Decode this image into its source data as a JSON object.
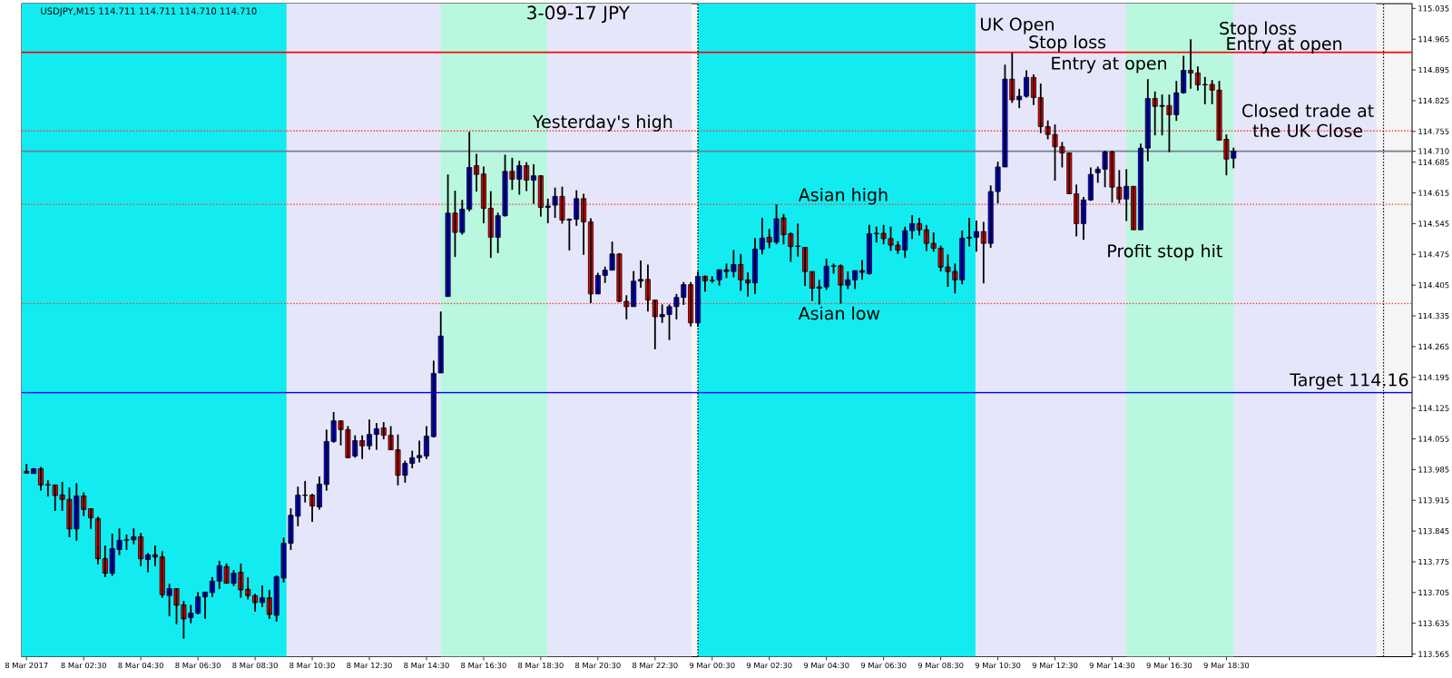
{
  "chart_data": {
    "type": "candlestick",
    "title": "3-09-17  JPY",
    "x": [
      "2017-03-08T00:30",
      "2017-03-08T00:45",
      "2017-03-08T01:00",
      "2017-03-08T01:15",
      "2017-03-08T01:30",
      "2017-03-08T01:45",
      "2017-03-08T02:00",
      "2017-03-08T02:15",
      "2017-03-08T02:30",
      "2017-03-08T02:45",
      "2017-03-08T03:00",
      "2017-03-08T03:15",
      "2017-03-08T03:30",
      "2017-03-08T03:45",
      "2017-03-08T04:00",
      "2017-03-08T04:15",
      "2017-03-08T04:30",
      "2017-03-08T04:45",
      "2017-03-08T05:00",
      "2017-03-08T05:15",
      "2017-03-08T05:30",
      "2017-03-08T05:45",
      "2017-03-08T06:00",
      "2017-03-08T06:15",
      "2017-03-08T06:30",
      "2017-03-08T06:45",
      "2017-03-08T07:00",
      "2017-03-08T07:15",
      "2017-03-08T07:30",
      "2017-03-08T07:45",
      "2017-03-08T08:00",
      "2017-03-08T08:15",
      "2017-03-08T08:30",
      "2017-03-08T08:45",
      "2017-03-08T09:00",
      "2017-03-08T09:15",
      "2017-03-08T09:30",
      "2017-03-08T09:45",
      "2017-03-08T10:00",
      "2017-03-08T10:15",
      "2017-03-08T10:30",
      "2017-03-08T10:45",
      "2017-03-08T11:00",
      "2017-03-08T11:15",
      "2017-03-08T11:30",
      "2017-03-08T11:45",
      "2017-03-08T12:00",
      "2017-03-08T12:15",
      "2017-03-08T12:30",
      "2017-03-08T12:45",
      "2017-03-08T13:00",
      "2017-03-08T13:15",
      "2017-03-08T13:30",
      "2017-03-08T13:45",
      "2017-03-08T14:00",
      "2017-03-08T14:15",
      "2017-03-08T14:30",
      "2017-03-08T14:45",
      "2017-03-08T15:00",
      "2017-03-08T15:15",
      "2017-03-08T15:30",
      "2017-03-08T15:45",
      "2017-03-08T16:00",
      "2017-03-08T16:15",
      "2017-03-08T16:30",
      "2017-03-08T16:45",
      "2017-03-08T17:00",
      "2017-03-08T17:15",
      "2017-03-08T17:30",
      "2017-03-08T17:45",
      "2017-03-08T18:00",
      "2017-03-08T18:15",
      "2017-03-08T18:30",
      "2017-03-08T18:45",
      "2017-03-08T19:00",
      "2017-03-08T19:15",
      "2017-03-08T19:30",
      "2017-03-08T19:45",
      "2017-03-08T20:00",
      "2017-03-08T20:15",
      "2017-03-08T20:30",
      "2017-03-08T20:45",
      "2017-03-08T21:00",
      "2017-03-08T21:15",
      "2017-03-08T21:30",
      "2017-03-08T21:45",
      "2017-03-08T22:00",
      "2017-03-08T22:15",
      "2017-03-08T22:30",
      "2017-03-08T22:45",
      "2017-03-08T23:00",
      "2017-03-08T23:15",
      "2017-03-08T23:30",
      "2017-03-08T23:45",
      "2017-03-09T00:00",
      "2017-03-09T00:15",
      "2017-03-09T00:30",
      "2017-03-09T00:45",
      "2017-03-09T01:00",
      "2017-03-09T01:15",
      "2017-03-09T01:30",
      "2017-03-09T01:45",
      "2017-03-09T02:00",
      "2017-03-09T02:15",
      "2017-03-09T02:30",
      "2017-03-09T02:45",
      "2017-03-09T03:00",
      "2017-03-09T03:15",
      "2017-03-09T03:30",
      "2017-03-09T03:45",
      "2017-03-09T04:00",
      "2017-03-09T04:15",
      "2017-03-09T04:30",
      "2017-03-09T04:45",
      "2017-03-09T05:00",
      "2017-03-09T05:15",
      "2017-03-09T05:30",
      "2017-03-09T05:45",
      "2017-03-09T06:00",
      "2017-03-09T06:15",
      "2017-03-09T06:30",
      "2017-03-09T06:45",
      "2017-03-09T07:00",
      "2017-03-09T07:15",
      "2017-03-09T07:30",
      "2017-03-09T07:45",
      "2017-03-09T08:00",
      "2017-03-09T08:15",
      "2017-03-09T08:30",
      "2017-03-09T08:45",
      "2017-03-09T09:00",
      "2017-03-09T09:15",
      "2017-03-09T09:30",
      "2017-03-09T09:45",
      "2017-03-09T10:00",
      "2017-03-09T10:15",
      "2017-03-09T10:30",
      "2017-03-09T10:45",
      "2017-03-09T11:00",
      "2017-03-09T11:15",
      "2017-03-09T11:30",
      "2017-03-09T11:45",
      "2017-03-09T12:00",
      "2017-03-09T12:15",
      "2017-03-09T12:30",
      "2017-03-09T12:45",
      "2017-03-09T13:00",
      "2017-03-09T13:15",
      "2017-03-09T13:30",
      "2017-03-09T13:45",
      "2017-03-09T14:00",
      "2017-03-09T14:15",
      "2017-03-09T14:30",
      "2017-03-09T14:45",
      "2017-03-09T15:00",
      "2017-03-09T15:15",
      "2017-03-09T15:30",
      "2017-03-09T15:45",
      "2017-03-09T16:00",
      "2017-03-09T16:15",
      "2017-03-09T16:30",
      "2017-03-09T16:45",
      "2017-03-09T17:00",
      "2017-03-09T17:15",
      "2017-03-09T17:30",
      "2017-03-09T17:45",
      "2017-03-09T18:00",
      "2017-03-09T18:15",
      "2017-03-09T18:30",
      "2017-03-09T18:45"
    ],
    "ohlc": [
      [
        113.981,
        113.998,
        113.976,
        113.977
      ],
      [
        113.976,
        113.988,
        113.976,
        113.987
      ],
      [
        113.987,
        113.991,
        113.937,
        113.95
      ],
      [
        113.951,
        113.961,
        113.924,
        113.95
      ],
      [
        113.95,
        113.95,
        113.891,
        113.926
      ],
      [
        113.927,
        113.957,
        113.891,
        113.917
      ],
      [
        113.917,
        113.944,
        113.831,
        113.85
      ],
      [
        113.85,
        113.954,
        113.823,
        113.925
      ],
      [
        113.925,
        113.933,
        113.879,
        113.894
      ],
      [
        113.896,
        113.896,
        113.85,
        113.875
      ],
      [
        113.873,
        113.878,
        113.769,
        113.782
      ],
      [
        113.782,
        113.812,
        113.74,
        113.749
      ],
      [
        113.749,
        113.839,
        113.743,
        113.805
      ],
      [
        113.803,
        113.851,
        113.79,
        113.824
      ],
      [
        113.824,
        113.837,
        113.802,
        113.825
      ],
      [
        113.825,
        113.851,
        113.815,
        113.832
      ],
      [
        113.832,
        113.841,
        113.765,
        113.782
      ],
      [
        113.78,
        113.795,
        113.751,
        113.791
      ],
      [
        113.791,
        113.812,
        113.765,
        113.786
      ],
      [
        113.786,
        113.799,
        113.693,
        113.7
      ],
      [
        113.698,
        113.725,
        113.651,
        113.714
      ],
      [
        113.714,
        113.714,
        113.633,
        113.676
      ],
      [
        113.677,
        113.686,
        113.6,
        113.645
      ],
      [
        113.648,
        113.677,
        113.635,
        113.658
      ],
      [
        113.658,
        113.706,
        113.655,
        113.695
      ],
      [
        113.695,
        113.706,
        113.645,
        113.706
      ],
      [
        113.705,
        113.74,
        113.695,
        113.731
      ],
      [
        113.731,
        113.777,
        113.713,
        113.766
      ],
      [
        113.764,
        113.771,
        113.726,
        113.726
      ],
      [
        113.726,
        113.756,
        113.72,
        113.749
      ],
      [
        113.751,
        113.771,
        113.693,
        113.711
      ],
      [
        113.712,
        113.74,
        113.689,
        113.698
      ],
      [
        113.698,
        113.702,
        113.662,
        113.682
      ],
      [
        113.682,
        113.721,
        113.672,
        113.693
      ],
      [
        113.693,
        113.711,
        113.645,
        113.655
      ],
      [
        113.653,
        113.744,
        113.639,
        113.741
      ],
      [
        113.738,
        113.83,
        113.728,
        113.817
      ],
      [
        113.817,
        113.897,
        113.802,
        113.881
      ],
      [
        113.879,
        113.946,
        113.856,
        113.927
      ],
      [
        113.927,
        113.959,
        113.91,
        113.926
      ],
      [
        113.927,
        113.93,
        113.866,
        113.902
      ],
      [
        113.9,
        113.969,
        113.894,
        113.952
      ],
      [
        113.951,
        114.076,
        113.937,
        114.049
      ],
      [
        114.049,
        114.116,
        114.046,
        114.096
      ],
      [
        114.096,
        114.096,
        114.04,
        114.076
      ],
      [
        114.076,
        114.084,
        114.012,
        114.012
      ],
      [
        114.016,
        114.063,
        114.012,
        114.051
      ],
      [
        114.051,
        114.063,
        114.009,
        114.039
      ],
      [
        114.039,
        114.099,
        114.03,
        114.065
      ],
      [
        114.065,
        114.091,
        114.03,
        114.078
      ],
      [
        114.08,
        114.093,
        114.054,
        114.063
      ],
      [
        114.063,
        114.084,
        114.03,
        114.03
      ],
      [
        114.03,
        114.065,
        113.949,
        113.972
      ],
      [
        113.972,
        114.005,
        113.955,
        113.999
      ],
      [
        113.999,
        114.028,
        113.988,
        114.012
      ],
      [
        114.012,
        114.051,
        114.001,
        114.017
      ],
      [
        114.016,
        114.084,
        114.009,
        114.061
      ],
      [
        114.06,
        114.233,
        114.058,
        114.204
      ],
      [
        114.205,
        114.345,
        114.205,
        114.289
      ],
      [
        114.379,
        114.657,
        114.379,
        114.569
      ],
      [
        114.569,
        114.62,
        114.469,
        114.525
      ],
      [
        114.525,
        114.599,
        114.52,
        114.578
      ],
      [
        114.578,
        114.754,
        114.573,
        114.673
      ],
      [
        114.677,
        114.704,
        114.618,
        114.657
      ],
      [
        114.658,
        114.675,
        114.546,
        114.58
      ],
      [
        114.58,
        114.619,
        114.467,
        114.514
      ],
      [
        114.514,
        114.57,
        114.478,
        114.563
      ],
      [
        114.563,
        114.702,
        114.561,
        114.664
      ],
      [
        114.664,
        114.695,
        114.622,
        114.646
      ],
      [
        114.646,
        114.688,
        114.611,
        114.677
      ],
      [
        114.677,
        114.685,
        114.619,
        114.644
      ],
      [
        114.644,
        114.68,
        114.59,
        114.654
      ],
      [
        114.654,
        114.655,
        114.561,
        114.582
      ],
      [
        114.582,
        114.602,
        114.546,
        114.585
      ],
      [
        114.587,
        114.627,
        114.558,
        114.607
      ],
      [
        114.607,
        114.629,
        114.545,
        114.553
      ],
      [
        114.553,
        114.557,
        114.484,
        114.555
      ],
      [
        114.555,
        114.621,
        114.54,
        114.602
      ],
      [
        114.602,
        114.613,
        114.474,
        114.549
      ],
      [
        114.549,
        114.557,
        114.364,
        114.385
      ],
      [
        114.385,
        114.433,
        114.385,
        114.427
      ],
      [
        114.427,
        114.447,
        114.41,
        114.439
      ],
      [
        114.439,
        114.504,
        114.439,
        114.476
      ],
      [
        114.476,
        114.478,
        114.366,
        114.368
      ],
      [
        114.368,
        114.382,
        114.327,
        114.356
      ],
      [
        114.356,
        114.437,
        114.356,
        114.414
      ],
      [
        114.414,
        114.461,
        114.399,
        114.418
      ],
      [
        114.418,
        114.452,
        114.345,
        114.371
      ],
      [
        114.371,
        114.371,
        114.259,
        114.333
      ],
      [
        114.333,
        114.361,
        114.319,
        114.338
      ],
      [
        114.338,
        114.361,
        114.28,
        114.356
      ],
      [
        114.356,
        114.385,
        114.327,
        114.377
      ],
      [
        114.377,
        114.412,
        114.36,
        114.406
      ],
      [
        114.406,
        114.412,
        114.311,
        114.319
      ],
      [
        114.319,
        114.436,
        114.31,
        114.425
      ],
      [
        114.425,
        114.427,
        114.39,
        114.415
      ],
      [
        114.415,
        114.425,
        114.41,
        114.416
      ],
      [
        114.417,
        114.44,
        114.404,
        114.44
      ],
      [
        114.44,
        114.454,
        114.421,
        114.436
      ],
      [
        114.436,
        114.485,
        114.423,
        114.452
      ],
      [
        114.452,
        114.476,
        114.392,
        114.417
      ],
      [
        114.417,
        114.434,
        114.379,
        114.41
      ],
      [
        114.41,
        114.512,
        114.385,
        114.487
      ],
      [
        114.487,
        114.558,
        114.475,
        114.512
      ],
      [
        114.514,
        114.533,
        114.489,
        114.503
      ],
      [
        114.503,
        114.589,
        114.498,
        114.556
      ],
      [
        114.558,
        114.567,
        114.498,
        114.52
      ],
      [
        114.522,
        114.525,
        114.458,
        114.493
      ],
      [
        114.493,
        114.545,
        114.47,
        114.494
      ],
      [
        114.491,
        114.491,
        114.403,
        114.436
      ],
      [
        114.436,
        114.436,
        114.369,
        114.398
      ],
      [
        114.398,
        114.417,
        114.361,
        114.401
      ],
      [
        114.401,
        114.465,
        114.394,
        114.448
      ],
      [
        114.448,
        114.454,
        114.431,
        114.449
      ],
      [
        114.449,
        114.452,
        114.363,
        114.405
      ],
      [
        114.405,
        114.436,
        114.396,
        114.417
      ],
      [
        114.417,
        114.438,
        114.396,
        114.438
      ],
      [
        114.438,
        114.462,
        114.417,
        114.434
      ],
      [
        114.431,
        114.542,
        114.429,
        114.522
      ],
      [
        114.522,
        114.538,
        114.502,
        114.523
      ],
      [
        114.523,
        114.542,
        114.498,
        114.511
      ],
      [
        114.511,
        114.538,
        114.483,
        114.496
      ],
      [
        114.496,
        114.505,
        114.476,
        114.485
      ],
      [
        114.485,
        114.538,
        114.467,
        114.529
      ],
      [
        114.529,
        114.564,
        114.51,
        114.545
      ],
      [
        114.545,
        114.558,
        114.518,
        114.531
      ],
      [
        114.531,
        114.542,
        114.483,
        114.5
      ],
      [
        114.5,
        114.525,
        114.481,
        114.489
      ],
      [
        114.489,
        114.495,
        114.436,
        114.446
      ],
      [
        114.446,
        114.475,
        114.401,
        114.436
      ],
      [
        114.436,
        114.454,
        114.386,
        114.417
      ],
      [
        114.417,
        114.529,
        114.407,
        114.512
      ],
      [
        114.512,
        114.558,
        114.493,
        114.514
      ],
      [
        114.514,
        114.552,
        114.481,
        114.527
      ],
      [
        114.527,
        114.549,
        114.409,
        114.5
      ],
      [
        114.5,
        114.632,
        114.49,
        114.618
      ],
      [
        114.618,
        114.686,
        114.591,
        114.674
      ],
      [
        114.674,
        114.907,
        114.674,
        114.874
      ],
      [
        114.874,
        114.934,
        114.82,
        114.827
      ],
      [
        114.827,
        114.852,
        114.808,
        114.835
      ],
      [
        114.835,
        114.894,
        114.832,
        114.878
      ],
      [
        114.878,
        114.885,
        114.815,
        114.832
      ],
      [
        114.832,
        114.864,
        114.751,
        114.766
      ],
      [
        114.766,
        114.78,
        114.737,
        114.748
      ],
      [
        114.748,
        114.771,
        114.643,
        114.72
      ],
      [
        114.72,
        114.731,
        114.673,
        114.706
      ],
      [
        114.706,
        114.706,
        114.613,
        114.613
      ],
      [
        114.613,
        114.634,
        114.516,
        114.545
      ],
      [
        114.545,
        114.606,
        114.508,
        114.599
      ],
      [
        114.599,
        114.673,
        114.597,
        114.657
      ],
      [
        114.661,
        114.675,
        114.638,
        114.669
      ],
      [
        114.669,
        114.711,
        114.628,
        114.708
      ],
      [
        114.708,
        114.711,
        114.593,
        114.628
      ],
      [
        114.628,
        114.667,
        114.591,
        114.601
      ],
      [
        114.601,
        114.669,
        114.551,
        114.63
      ],
      [
        114.63,
        114.63,
        114.531,
        114.531
      ],
      [
        114.531,
        114.727,
        114.531,
        114.717
      ],
      [
        114.717,
        114.874,
        114.687,
        114.83
      ],
      [
        114.83,
        114.846,
        114.746,
        114.812
      ],
      [
        114.812,
        114.839,
        114.746,
        114.814
      ],
      [
        114.814,
        114.839,
        114.708,
        114.793
      ],
      [
        114.793,
        114.87,
        114.779,
        114.843
      ],
      [
        114.843,
        114.927,
        114.841,
        114.894
      ],
      [
        114.894,
        114.965,
        114.852,
        114.888
      ],
      [
        114.888,
        114.903,
        114.848,
        114.861
      ],
      [
        114.861,
        114.879,
        114.817,
        114.862
      ],
      [
        114.862,
        114.872,
        114.817,
        114.849
      ],
      [
        114.849,
        114.87,
        114.735,
        114.735
      ],
      [
        114.737,
        114.748,
        114.655,
        114.692
      ],
      [
        114.694,
        114.718,
        114.671,
        114.71
      ]
    ],
    "xlim": [
      "2017-03-08T00:20",
      "2017-03-10T01:00"
    ],
    "ylim": [
      113.559,
      115.046
    ],
    "xticks": [
      {
        "value": "2017-03-08T00:30",
        "label": "8 Mar 2017"
      },
      {
        "value": "2017-03-08T02:30",
        "label": "8 Mar 02:30"
      },
      {
        "value": "2017-03-08T04:30",
        "label": "8 Mar 04:30"
      },
      {
        "value": "2017-03-08T06:30",
        "label": "8 Mar 06:30"
      },
      {
        "value": "2017-03-08T08:30",
        "label": "8 Mar 08:30"
      },
      {
        "value": "2017-03-08T10:30",
        "label": "8 Mar 10:30"
      },
      {
        "value": "2017-03-08T12:30",
        "label": "8 Mar 12:30"
      },
      {
        "value": "2017-03-08T14:30",
        "label": "8 Mar 14:30"
      },
      {
        "value": "2017-03-08T16:30",
        "label": "8 Mar 16:30"
      },
      {
        "value": "2017-03-08T18:30",
        "label": "8 Mar 18:30"
      },
      {
        "value": "2017-03-08T20:30",
        "label": "8 Mar 20:30"
      },
      {
        "value": "2017-03-08T22:30",
        "label": "8 Mar 22:30"
      },
      {
        "value": "2017-03-09T00:30",
        "label": "9 Mar 00:30"
      },
      {
        "value": "2017-03-09T02:30",
        "label": "9 Mar 02:30"
      },
      {
        "value": "2017-03-09T04:30",
        "label": "9 Mar 04:30"
      },
      {
        "value": "2017-03-09T06:30",
        "label": "9 Mar 06:30"
      },
      {
        "value": "2017-03-09T08:30",
        "label": "9 Mar 08:30"
      },
      {
        "value": "2017-03-09T10:30",
        "label": "9 Mar 10:30"
      },
      {
        "value": "2017-03-09T12:30",
        "label": "9 Mar 12:30"
      },
      {
        "value": "2017-03-09T14:30",
        "label": "9 Mar 14:30"
      },
      {
        "value": "2017-03-09T16:30",
        "label": "9 Mar 16:30"
      },
      {
        "value": "2017-03-09T18:30",
        "label": "9 Mar 18:30"
      }
    ],
    "yticks": [
      113.565,
      113.635,
      113.705,
      113.775,
      113.845,
      113.915,
      113.985,
      114.055,
      114.125,
      114.195,
      114.265,
      114.335,
      114.405,
      114.475,
      114.545,
      114.615,
      114.685,
      {
        "value": 114.71,
        "label": "114.710"
      },
      114.755,
      114.825,
      114.895,
      114.965,
      115.035
    ],
    "bands": [
      {
        "axis": "x",
        "from": "2017-03-08T00:20",
        "to": "2017-03-08T23:47",
        "color": "#e6e6fa"
      },
      {
        "axis": "x",
        "from": "2017-03-09T00:00",
        "to": "2017-03-09T23:45",
        "color": "#e6e6fa"
      },
      {
        "axis": "x",
        "from": "2017-03-08T00:20",
        "to": "2017-03-08T09:36",
        "color": "#12ecf0"
      },
      {
        "axis": "x",
        "from": "2017-03-08T15:00",
        "to": "2017-03-08T18:44",
        "color": "#b9f8df"
      },
      {
        "axis": "x",
        "from": "2017-03-09T00:00",
        "to": "2017-03-09T09:43",
        "color": "#12ecf0"
      },
      {
        "axis": "x",
        "from": "2017-03-09T14:59",
        "to": "2017-03-09T18:45",
        "color": "#b9f8df"
      }
    ],
    "ref_lines": [
      {
        "axis": "y",
        "value": 114.935,
        "color": "#ff0000"
      },
      {
        "axis": "y",
        "value": 114.756,
        "color": "#ff3030",
        "line_style": "dotted"
      },
      {
        "axis": "y",
        "value": 114.589,
        "color": "#ff3030",
        "line_style": "dotted"
      },
      {
        "axis": "y",
        "value": 114.363,
        "color": "#ff3030",
        "line_style": "dotted"
      },
      {
        "axis": "y",
        "value": 114.16,
        "color": "#0000ff",
        "label": "Target  114.16"
      },
      {
        "axis": "y",
        "value": 114.71,
        "color": "#708090"
      },
      {
        "axis": "x",
        "value": "2017-03-09T00:00",
        "color": "#000000",
        "line_style": "dotted"
      },
      {
        "axis": "x",
        "value": "2017-03-10T00:00",
        "color": "#000000",
        "line_style": "dotted"
      }
    ],
    "annotations": [
      "USDJPY,M15  114.711 114.711 114.710 114.710",
      "UK Open",
      "Stop loss",
      "Entry at open",
      "Yesterday's high",
      "Asian high",
      "Asian low",
      "Profit stop hit",
      "Stop loss",
      "Entry at open",
      "Closed trade at the UK Close"
    ]
  }
}
